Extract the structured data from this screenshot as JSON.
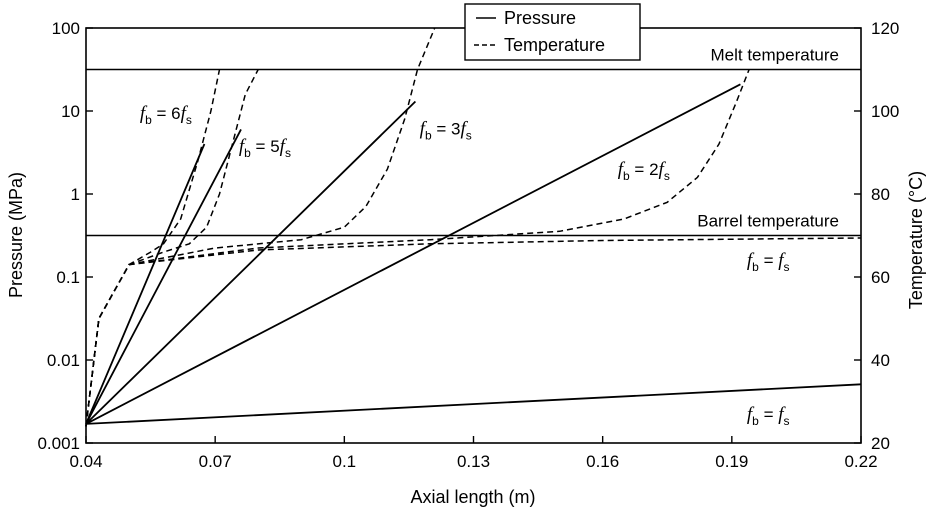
{
  "chart_data": {
    "type": "line",
    "xlabel": "Axial length (m)",
    "ylabel_left": "Pressure (MPa)",
    "ylabel_right": "Temperature (°C)",
    "xlim": [
      0.04,
      0.22
    ],
    "ylim_left": [
      0.001,
      100
    ],
    "ylim_right": [
      20,
      120
    ],
    "left_scale": "log",
    "grid": false,
    "legend_position": "top-center",
    "x_ticks": [
      "0.04",
      "0.07",
      "0.1",
      "0.13",
      "0.16",
      "0.19",
      "0.22"
    ],
    "y_left_ticks": [
      "0.001",
      "0.01",
      "0.1",
      "1",
      "10",
      "100"
    ],
    "y_right_ticks": [
      "20",
      "40",
      "60",
      "80",
      "100",
      "120"
    ],
    "legend": [
      {
        "label": "Pressure",
        "style": "solid"
      },
      {
        "label": "Temperature",
        "style": "dashed"
      }
    ],
    "reference_lines": [
      {
        "label": "Melt temperature",
        "axis": "right",
        "y": 110
      },
      {
        "label": "Barrel temperature",
        "axis": "right",
        "y": 70
      }
    ],
    "pressure_series": [
      {
        "label": {
          "base": "f",
          "sub": "b",
          "rel": " = ",
          "coef": "6",
          "base2": "f",
          "sub2": "s"
        },
        "x": [
          0.04,
          0.0675
        ],
        "y": [
          0.0017,
          4.0
        ]
      },
      {
        "label": {
          "base": "f",
          "sub": "b",
          "rel": " = ",
          "coef": "5",
          "base2": "f",
          "sub2": "s"
        },
        "x": [
          0.04,
          0.076
        ],
        "y": [
          0.0017,
          6.0
        ]
      },
      {
        "label": {
          "base": "f",
          "sub": "b",
          "rel": " = ",
          "coef": "3",
          "base2": "f",
          "sub2": "s"
        },
        "x": [
          0.04,
          0.1165
        ],
        "y": [
          0.0017,
          13.0
        ]
      },
      {
        "label": {
          "base": "f",
          "sub": "b",
          "rel": " = ",
          "coef": "2",
          "base2": "f",
          "sub2": "s"
        },
        "x": [
          0.04,
          0.192
        ],
        "y": [
          0.0017,
          21.0
        ]
      },
      {
        "label": {
          "base": "f",
          "sub": "b",
          "rel": " = ",
          "coef": "",
          "base2": "f",
          "sub2": "s"
        },
        "x": [
          0.04,
          0.22
        ],
        "y": [
          0.0017,
          0.0051
        ]
      }
    ],
    "temperature_series": [
      {
        "name": "6fs",
        "x": [
          0.04,
          0.043,
          0.05,
          0.055,
          0.058,
          0.062,
          0.066,
          0.069,
          0.071
        ],
        "y": [
          24,
          50,
          63,
          66,
          68,
          74,
          88,
          100,
          110
        ]
      },
      {
        "name": "5fs",
        "x": [
          0.04,
          0.043,
          0.05,
          0.058,
          0.064,
          0.068,
          0.071,
          0.074,
          0.077,
          0.08
        ],
        "y": [
          24,
          50,
          63,
          66,
          68,
          72,
          80,
          92,
          104,
          110
        ]
      },
      {
        "name": "3fs",
        "x": [
          0.04,
          0.043,
          0.05,
          0.07,
          0.09,
          0.1,
          0.105,
          0.11,
          0.114,
          0.117,
          0.121
        ],
        "y": [
          24,
          50,
          63,
          67,
          69,
          72,
          77,
          86,
          98,
          110,
          120
        ]
      },
      {
        "name": "2fs",
        "x": [
          0.04,
          0.043,
          0.05,
          0.08,
          0.12,
          0.15,
          0.165,
          0.175,
          0.182,
          0.187,
          0.191,
          0.194
        ],
        "y": [
          24,
          50,
          63,
          67,
          69,
          71,
          74,
          78,
          84,
          92,
          102,
          110
        ]
      },
      {
        "name": "fs",
        "x": [
          0.04,
          0.043,
          0.05,
          0.08,
          0.12,
          0.16,
          0.2,
          0.22
        ],
        "y": [
          24,
          50,
          63,
          66.5,
          68,
          68.8,
          69.2,
          69.4
        ]
      }
    ],
    "annotations": [
      {
        "text": {
          "base": "f",
          "sub": "b",
          "rel": " = ",
          "coef": "6",
          "base2": "f",
          "sub2": "s"
        },
        "x": 0.0525,
        "y_left": 8.0
      },
      {
        "text": {
          "base": "f",
          "sub": "b",
          "rel": " = ",
          "coef": "5",
          "base2": "f",
          "sub2": "s"
        },
        "x": 0.0755,
        "y_left": 3.2
      },
      {
        "text": {
          "base": "f",
          "sub": "b",
          "rel": " = ",
          "coef": "3",
          "base2": "f",
          "sub2": "s"
        },
        "x": 0.1175,
        "y_left": 5.2
      },
      {
        "text": {
          "base": "f",
          "sub": "b",
          "rel": " = ",
          "coef": "2",
          "base2": "f",
          "sub2": "s"
        },
        "x": 0.1635,
        "y_left": 1.7
      },
      {
        "text": {
          "base": "f",
          "sub": "b",
          "rel": " = ",
          "coef": "",
          "base2": "f",
          "sub2": "s"
        },
        "x": 0.1935,
        "y_left": 0.135
      },
      {
        "text": {
          "base": "f",
          "sub": "b",
          "rel": " = ",
          "coef": "",
          "base2": "f",
          "sub2": "s"
        },
        "x": 0.1935,
        "y_left": 0.0019
      }
    ]
  }
}
